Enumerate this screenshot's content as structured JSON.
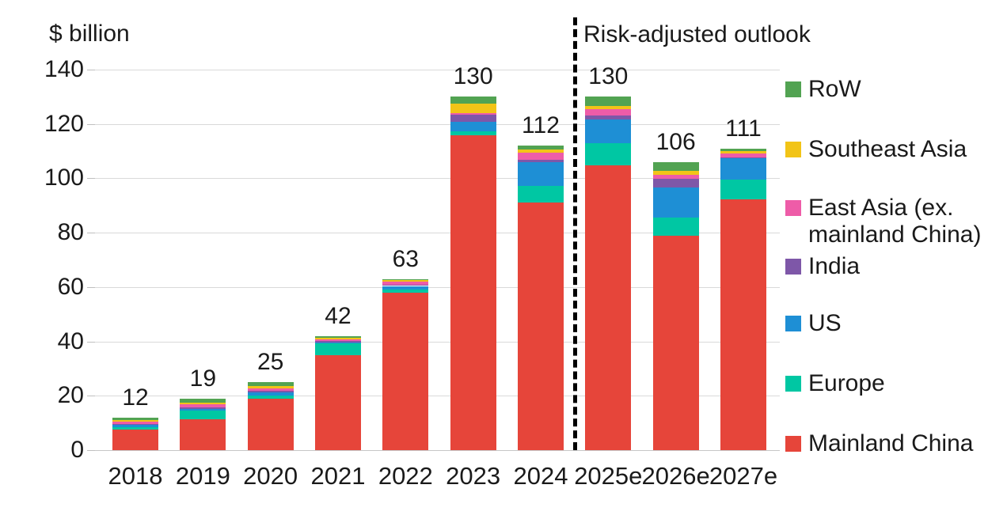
{
  "chart_data": {
    "type": "bar",
    "stacked": true,
    "ylabel": "$ billion",
    "ylim": [
      0,
      140
    ],
    "yticks": [
      0,
      20,
      40,
      60,
      80,
      100,
      120,
      140
    ],
    "grid": true,
    "legend_position": "right",
    "annotation": "Risk-adjusted outlook",
    "separator_after_category": "2024",
    "categories": [
      "2018",
      "2019",
      "2020",
      "2021",
      "2022",
      "2023",
      "2024",
      "2025e",
      "2026e",
      "2027e"
    ],
    "totals": [
      12,
      19,
      25,
      42,
      63,
      130,
      112,
      130,
      106,
      111
    ],
    "series": [
      {
        "name": "Mainland China",
        "color": "#e6453a",
        "values": [
          7.7,
          11.5,
          19.0,
          35.0,
          58.0,
          115.8,
          91.0,
          104.8,
          79.0,
          92.2
        ]
      },
      {
        "name": "Europe",
        "color": "#00c7a3",
        "values": [
          0.8,
          3.0,
          1.2,
          4.2,
          1.2,
          1.5,
          6.2,
          8.2,
          6.7,
          7.3
        ]
      },
      {
        "name": "US",
        "color": "#1e8fd5",
        "values": [
          0.7,
          0.7,
          1.0,
          0.4,
          1.2,
          3.6,
          8.8,
          8.8,
          10.8,
          7.8
        ]
      },
      {
        "name": "India",
        "color": "#7e57a8",
        "values": [
          0.5,
          0.6,
          0.6,
          0.5,
          0.3,
          2.4,
          0.8,
          1.4,
          3.4,
          0.5
        ]
      },
      {
        "name": "East Asia (ex. mainland China)",
        "color": "#ee5ca8",
        "values": [
          0.8,
          1.0,
          0.8,
          0.6,
          1.3,
          0.8,
          2.6,
          2.2,
          1.4,
          1.3
        ]
      },
      {
        "name": "Southeast Asia",
        "color": "#f2c417",
        "values": [
          0.6,
          0.8,
          0.9,
          0.7,
          0.6,
          3.4,
          1.3,
          1.2,
          1.5,
          1.0
        ]
      },
      {
        "name": "RoW",
        "color": "#52a352",
        "values": [
          0.9,
          1.4,
          1.5,
          0.6,
          0.4,
          2.5,
          1.3,
          3.4,
          3.2,
          0.9
        ]
      }
    ],
    "legend": [
      "RoW",
      "Southeast Asia",
      "East Asia (ex. mainland China)",
      "India",
      "US",
      "Europe",
      "Mainland China"
    ]
  }
}
